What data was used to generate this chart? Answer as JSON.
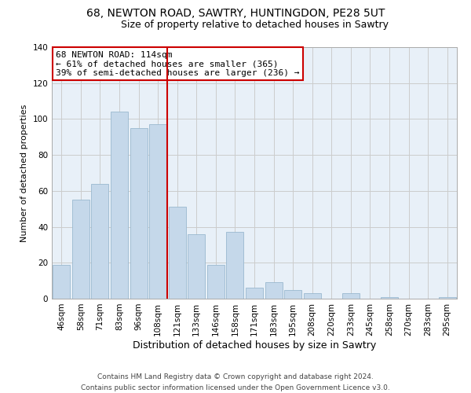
{
  "title": "68, NEWTON ROAD, SAWTRY, HUNTINGDON, PE28 5UT",
  "subtitle": "Size of property relative to detached houses in Sawtry",
  "xlabel": "Distribution of detached houses by size in Sawtry",
  "ylabel": "Number of detached properties",
  "bar_labels": [
    "46sqm",
    "58sqm",
    "71sqm",
    "83sqm",
    "96sqm",
    "108sqm",
    "121sqm",
    "133sqm",
    "146sqm",
    "158sqm",
    "171sqm",
    "183sqm",
    "195sqm",
    "208sqm",
    "220sqm",
    "233sqm",
    "245sqm",
    "258sqm",
    "270sqm",
    "283sqm",
    "295sqm"
  ],
  "bar_values": [
    19,
    55,
    64,
    104,
    95,
    97,
    51,
    36,
    19,
    37,
    6,
    9,
    5,
    3,
    0,
    3,
    0,
    1,
    0,
    0,
    1
  ],
  "bar_color": "#c5d8ea",
  "bar_edge_color": "#9ab8cf",
  "vline_x": 5.5,
  "vline_color": "#cc0000",
  "annotation_text": "68 NEWTON ROAD: 114sqm\n← 61% of detached houses are smaller (365)\n39% of semi-detached houses are larger (236) →",
  "annotation_box_color": "#ffffff",
  "annotation_box_edge_color": "#cc0000",
  "ylim": [
    0,
    140
  ],
  "yticks": [
    0,
    20,
    40,
    60,
    80,
    100,
    120,
    140
  ],
  "grid_color": "#cccccc",
  "bg_color": "#e8f0f8",
  "footer_line1": "Contains HM Land Registry data © Crown copyright and database right 2024.",
  "footer_line2": "Contains public sector information licensed under the Open Government Licence v3.0.",
  "title_fontsize": 10,
  "subtitle_fontsize": 9,
  "xlabel_fontsize": 9,
  "ylabel_fontsize": 8,
  "tick_fontsize": 7.5,
  "annotation_fontsize": 8,
  "footer_fontsize": 6.5
}
